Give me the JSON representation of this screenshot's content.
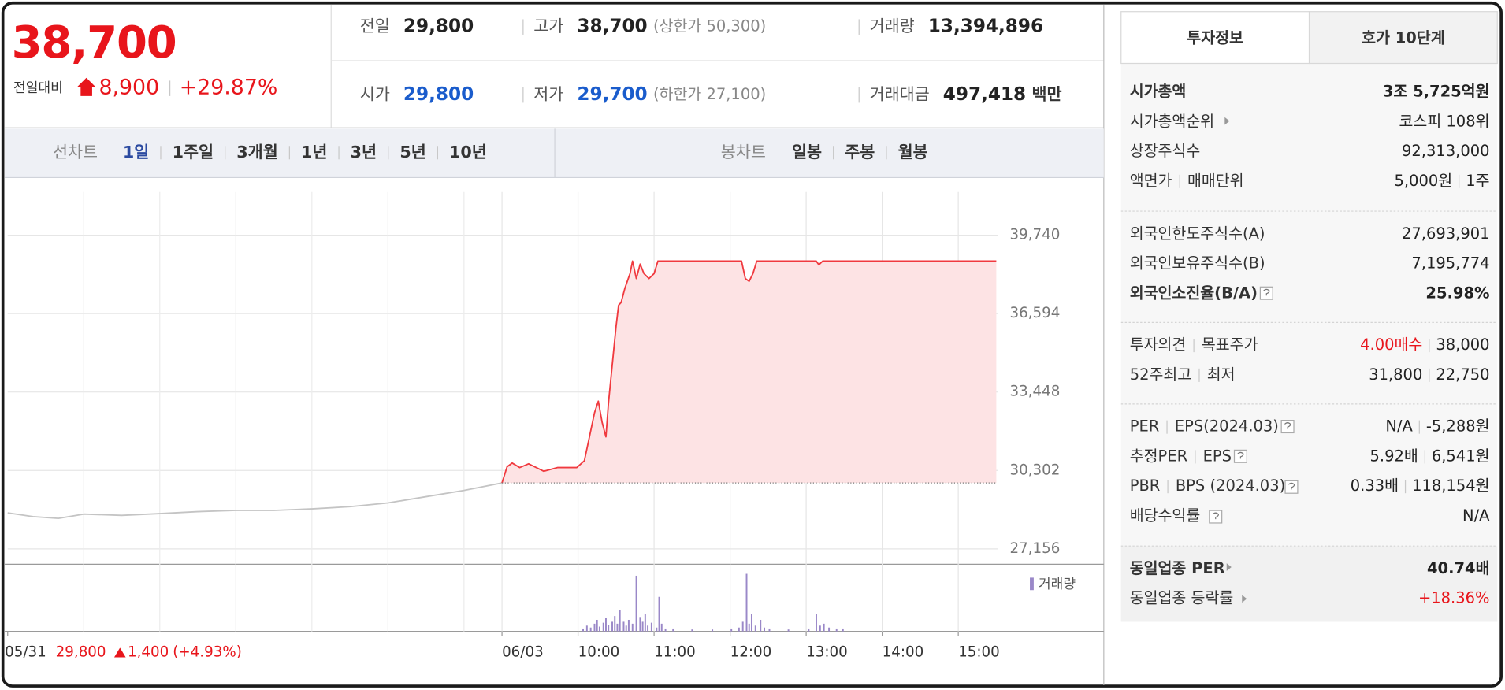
{
  "quote": {
    "price": "38,700",
    "change_label": "전일대비",
    "change": "8,900",
    "change_rate": "+29.87%"
  },
  "stats": [
    {
      "label": "전일",
      "value": "29,800"
    },
    {
      "label": "고가",
      "value": "38,700",
      "note": "(상한가 50,300)"
    },
    {
      "label": "거래량",
      "value": "13,394,896"
    },
    {
      "label": "시가",
      "value": "29,800"
    },
    {
      "label": "저가",
      "value": "29,700",
      "note": "(하한가 27,100)"
    },
    {
      "label": "거래대금",
      "value": "497,418",
      "unit": "백만"
    }
  ],
  "chart_tabs": {
    "line": {
      "label": "선차트",
      "periods": [
        "1일",
        "1주일",
        "3개월",
        "1년",
        "3년",
        "5년",
        "10년"
      ]
    },
    "candle": {
      "label": "봉차트",
      "periods": [
        "일봉",
        "주봉",
        "월봉"
      ]
    }
  },
  "previous_close": {
    "price": "29,800",
    "change": "1,400",
    "change_rate": "(+4.93%)"
  },
  "chart_data": {
    "type": "line",
    "xlim": [
      0,
      780
    ],
    "ylim": [
      26540,
      42050
    ],
    "yticks": [
      {
        "value": 39740,
        "label": "39,740"
      },
      {
        "value": 36594,
        "label": "36,594"
      },
      {
        "value": 33448,
        "label": "33,448"
      },
      {
        "value": 30302,
        "label": "30,302"
      },
      {
        "value": 27156,
        "label": "27,156"
      }
    ],
    "xticks": [
      {
        "value": 0,
        "label": "05/31"
      },
      {
        "value": 390,
        "label": "06/03"
      },
      {
        "value": 450,
        "label": "10:00"
      },
      {
        "value": 510,
        "label": "11:00"
      },
      {
        "value": 570,
        "label": "12:00"
      },
      {
        "value": 630,
        "label": "13:00"
      },
      {
        "value": 690,
        "label": "14:00"
      },
      {
        "value": 750,
        "label": "15:00"
      }
    ],
    "xgrid": [
      60,
      120,
      180,
      240,
      300,
      360
    ],
    "grid": true,
    "baseline": 29800,
    "series": [
      {
        "color": "#c4c4c4",
        "x": [
          0,
          20,
          40,
          60,
          90,
          120,
          150,
          180,
          210,
          240,
          270,
          300,
          330,
          360,
          375,
          390
        ],
        "values": [
          28600,
          28450,
          28380,
          28550,
          28500,
          28570,
          28650,
          28700,
          28700,
          28760,
          28850,
          29000,
          29250,
          29500,
          29650,
          29800
        ]
      },
      {
        "color": "#f03a3f",
        "fill": "#fde3e4",
        "x": [
          390,
          394,
          398,
          404,
          411,
          423,
          434,
          449,
          455,
          459,
          463,
          466,
          469,
          472,
          474,
          477,
          480,
          482,
          484,
          487,
          491,
          493,
          496,
          499,
          502,
          506,
          510,
          513,
          579,
          582,
          585,
          588,
          591,
          638,
          640,
          643,
          780
        ],
        "values": [
          29800,
          30450,
          30600,
          30420,
          30570,
          30270,
          30420,
          30420,
          30690,
          31650,
          32620,
          33080,
          32230,
          31650,
          33000,
          34540,
          36080,
          36930,
          37040,
          37620,
          38200,
          38700,
          38000,
          38580,
          38200,
          38000,
          38200,
          38700,
          38700,
          38000,
          37890,
          38200,
          38700,
          38700,
          38550,
          38700,
          38700
        ]
      }
    ],
    "volume": {
      "name": "거래량",
      "color": "#9a88c8",
      "ylim": [
        0,
        60
      ],
      "x": [
        454,
        457,
        460,
        463,
        465,
        467,
        470,
        472,
        474,
        477,
        479,
        481,
        483,
        486,
        488,
        490,
        493,
        496,
        499,
        501,
        503,
        505,
        508,
        512,
        514,
        516,
        519,
        525,
        540,
        556,
        571,
        577,
        580,
        583,
        585,
        587,
        590,
        594,
        597,
        601,
        616,
        632,
        638,
        641,
        644,
        648,
        654,
        659
      ],
      "values": [
        3,
        6,
        4,
        8,
        12,
        5,
        9,
        14,
        7,
        10,
        16,
        8,
        22,
        10,
        6,
        12,
        8,
        58,
        15,
        10,
        18,
        6,
        9,
        4,
        36,
        8,
        3,
        3,
        2,
        2,
        3,
        4,
        10,
        60,
        8,
        18,
        6,
        12,
        4,
        3,
        2,
        3,
        18,
        6,
        8,
        4,
        3,
        3
      ]
    }
  },
  "info_tabs": [
    "투자정보",
    "호가 10단계"
  ],
  "info": [
    [
      {
        "label": [
          "시가총액"
        ],
        "value": [
          "3조 5,725억원"
        ]
      },
      {
        "label": [
          "시가총액순위"
        ],
        "value": [
          "코스피 108위"
        ]
      },
      {
        "label": [
          "상장주식수"
        ],
        "value": [
          "92,313,000"
        ]
      },
      {
        "label": [
          "액면가",
          "매매단위"
        ],
        "value": [
          "5,000원",
          "1주"
        ]
      }
    ],
    [
      {
        "label": [
          "외국인한도주식수(A)"
        ],
        "value": [
          "27,693,901"
        ]
      },
      {
        "label": [
          "외국인보유주식수(B)"
        ],
        "value": [
          "7,195,774"
        ]
      },
      {
        "label": [
          "외국인소진율(B/A)"
        ],
        "value": [
          "25.98%"
        ]
      }
    ],
    [
      {
        "label": [
          "투자의견",
          "목표주가"
        ],
        "value": [
          "4.00매수",
          "38,000"
        ]
      },
      {
        "label": [
          "52주최고",
          "최저"
        ],
        "value": [
          "31,800",
          "22,750"
        ]
      }
    ],
    [
      {
        "label": [
          "PER",
          "EPS(2024.03)"
        ],
        "value": [
          "N/A",
          "-5,288원"
        ]
      },
      {
        "label": [
          "추정PER",
          "EPS"
        ],
        "value": [
          "5.92배",
          "6,541원"
        ]
      },
      {
        "label": [
          "PBR",
          "BPS (2024.03)"
        ],
        "value": [
          "0.33배",
          "118,154원"
        ]
      },
      {
        "label": [
          "배당수익률"
        ],
        "value": [
          "N/A"
        ]
      }
    ],
    [
      {
        "label": [
          "동일업종 PER"
        ],
        "value": [
          "40.74배"
        ]
      },
      {
        "label": [
          "동일업종 등락률"
        ],
        "value": [
          "+18.36%"
        ]
      }
    ]
  ]
}
